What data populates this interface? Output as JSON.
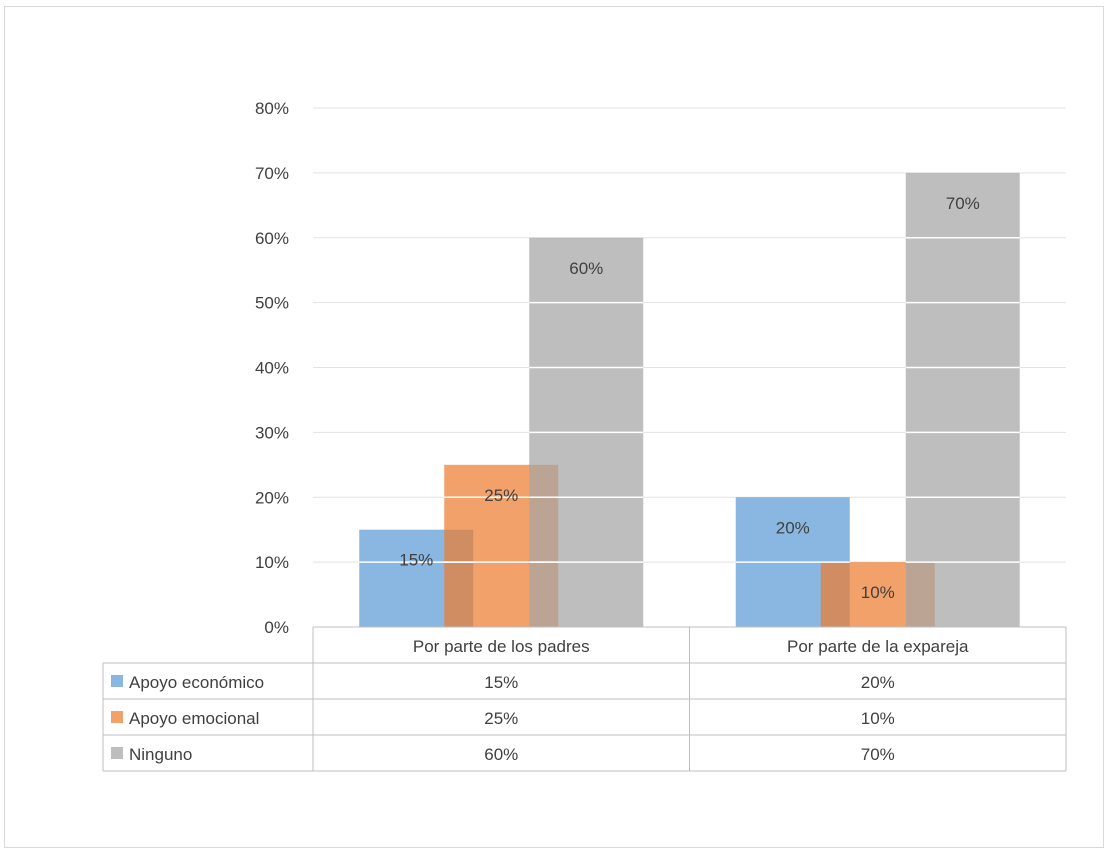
{
  "chart_data": {
    "type": "bar",
    "categories": [
      "Por parte de los padres",
      "Por parte de la expareja"
    ],
    "series": [
      {
        "name": "Apoyo económico",
        "values": [
          15,
          20
        ],
        "labels": [
          "15%",
          "20%"
        ],
        "color": "#5b9bd5"
      },
      {
        "name": "Apoyo emocional",
        "values": [
          25,
          10
        ],
        "labels": [
          "25%",
          "10%"
        ],
        "color": "#ed7d31"
      },
      {
        "name": "Ninguno",
        "values": [
          60,
          70
        ],
        "labels": [
          "60%",
          "70%"
        ],
        "color": "#a5a5a5"
      }
    ],
    "yticks": [
      "0%",
      "10%",
      "20%",
      "30%",
      "40%",
      "50%",
      "60%",
      "70%",
      "80%"
    ],
    "ylim": [
      0,
      80
    ],
    "grid": true,
    "legend": "data-table"
  }
}
